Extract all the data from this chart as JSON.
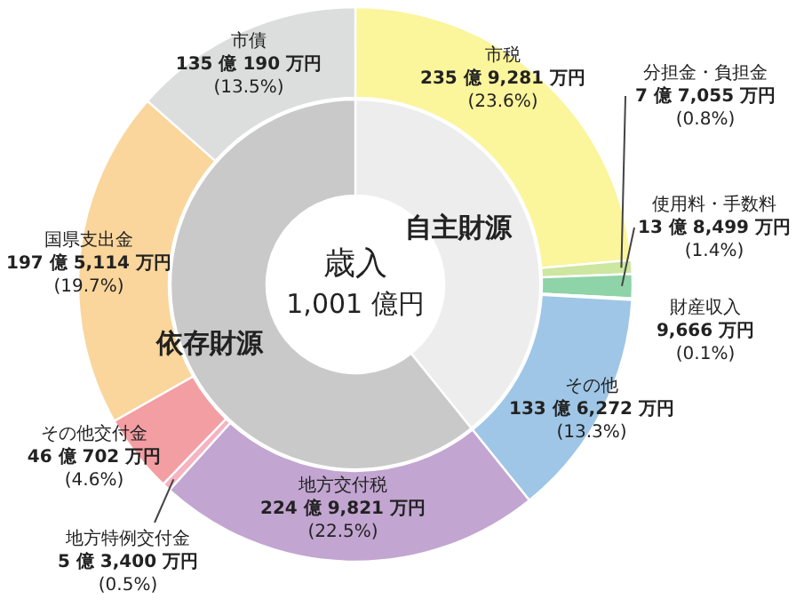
{
  "chart_data": [
    {
      "type": "donut",
      "annotations": [
        "歳入",
        "1,001 億円"
      ],
      "categories": [
        "市税",
        "分担金・負担金",
        "使用料・手数料",
        "財産収入",
        "その他",
        "地方交付税",
        "地方特例交付金",
        "その他交付金",
        "国県支出金",
        "市債"
      ],
      "values": [
        23.6,
        0.8,
        1.4,
        0.1,
        13.3,
        22.5,
        0.5,
        4.6,
        19.7,
        13.5
      ],
      "colors": [
        "#fbf59c",
        "#cde6a0",
        "#8fd3a8",
        "#a9d9f2",
        "#9fc6e6",
        "#c2a5d1",
        "#f6b3c0",
        "#f39ea3",
        "#fad69c",
        "#dcdddd"
      ],
      "value_labels": [
        "235 億 9,281 万円\n(23.6%)",
        "7 億 7,055 万円\n(0.8%)",
        "13 億 8,499 万円\n(1.4%)",
        "9,666 万円\n(0.1%)",
        "133 億 6,272 万円\n(13.3%)",
        "224 億 9,821 万円\n(22.5%)",
        "5 億 3,400 万円\n(0.5%)",
        "46 億 702 万円\n(4.6%)",
        "197 億 5,114 万円\n(19.7%)",
        "135 億 190 万円\n(13.5%)"
      ]
    },
    {
      "type": "donut",
      "categories": [
        "自主財源",
        "依存財源"
      ],
      "values": [
        39.2,
        60.8
      ],
      "colors": [
        "#ededed",
        "#c9c9c9"
      ]
    }
  ]
}
